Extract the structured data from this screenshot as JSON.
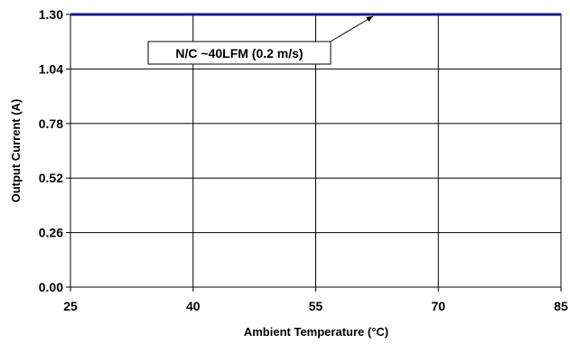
{
  "chart_data": {
    "type": "line",
    "x_ticks": [
      "25",
      "40",
      "55",
      "70",
      "85"
    ],
    "y_ticks": [
      "0.00",
      "0.26",
      "0.52",
      "0.78",
      "1.04",
      "1.30"
    ],
    "xlim": [
      25,
      85
    ],
    "ylim": [
      0,
      1.3
    ],
    "xlabel": "Ambient Temperature (°C)",
    "ylabel": "Output Current (A)",
    "grid": true,
    "series": [
      {
        "name": "N/C ~40LFM (0.2 m/s)",
        "color": "#1a1a8c",
        "x": [
          25,
          85
        ],
        "y": [
          1.3,
          1.3
        ]
      }
    ],
    "annotation": {
      "text": "N/C ~40LFM (0.2 m/s)",
      "points_to_x": 62,
      "points_to_y": 1.3
    }
  }
}
